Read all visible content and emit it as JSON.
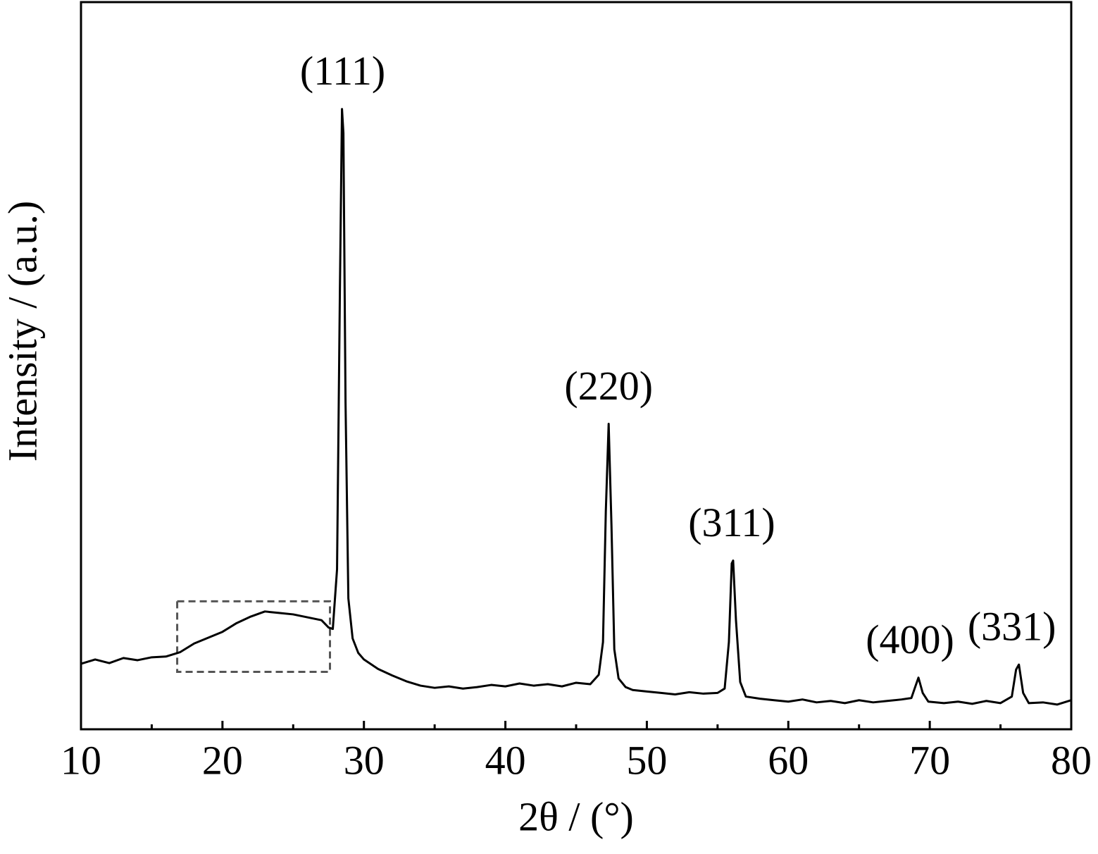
{
  "chart_data": {
    "type": "line",
    "xlabel": "2θ / (°)",
    "ylabel": "Intensity / (a.u.)",
    "x": [
      10,
      11,
      12,
      13,
      14,
      15,
      16,
      17,
      18,
      19,
      20,
      21,
      22,
      23,
      24,
      25,
      26,
      27,
      27.5,
      27.8,
      28.1,
      28.3,
      28.45,
      28.55,
      28.7,
      28.9,
      29.2,
      29.6,
      30,
      31,
      32,
      33,
      34,
      35,
      36,
      37,
      38,
      39,
      40,
      41,
      42,
      43,
      44,
      45,
      46,
      46.6,
      46.9,
      47.1,
      47.3,
      47.5,
      47.7,
      48,
      48.5,
      49,
      50,
      51,
      52,
      53,
      54,
      55,
      55.5,
      55.8,
      56,
      56.1,
      56.3,
      56.6,
      57,
      58,
      59,
      60,
      61,
      62,
      63,
      64,
      65,
      66,
      67,
      68,
      68.7,
      69.0,
      69.2,
      69.5,
      69.9,
      71,
      72,
      73,
      74,
      75,
      75.8,
      76.1,
      76.3,
      76.6,
      77,
      78,
      79,
      80
    ],
    "values": [
      9.0,
      9.6,
      9.1,
      9.8,
      9.5,
      9.9,
      10.0,
      10.6,
      11.8,
      12.6,
      13.4,
      14.6,
      15.5,
      16.2,
      16.0,
      15.8,
      15.4,
      15.0,
      14.0,
      13.8,
      22,
      60,
      85.3,
      82,
      45,
      18,
      12.5,
      10.5,
      9.6,
      8.3,
      7.4,
      6.6,
      6.0,
      5.7,
      5.9,
      5.6,
      5.8,
      6.1,
      5.9,
      6.3,
      6.0,
      6.2,
      5.9,
      6.4,
      6.2,
      7.5,
      12,
      30,
      42.0,
      28,
      11,
      7.0,
      5.8,
      5.4,
      5.2,
      5.0,
      4.8,
      5.1,
      4.9,
      5.0,
      5.6,
      12,
      22.8,
      23.2,
      15,
      6.5,
      4.5,
      4.2,
      4.0,
      3.8,
      4.1,
      3.7,
      3.9,
      3.6,
      4.0,
      3.7,
      3.9,
      4.1,
      4.3,
      6.0,
      7.1,
      5.0,
      3.8,
      3.6,
      3.8,
      3.5,
      3.9,
      3.6,
      4.5,
      8.2,
      8.9,
      5.0,
      3.6,
      3.7,
      3.4,
      4.0
    ],
    "color": "#000000",
    "xlim": [
      10,
      80
    ],
    "ylim": [
      0,
      100
    ],
    "xticks": [
      10,
      20,
      30,
      40,
      50,
      60,
      70,
      80
    ],
    "xminor_ticks": [
      15,
      25,
      35,
      45,
      55,
      65,
      75
    ],
    "annotations": [
      {
        "text": "(111)",
        "x": 28.5
      },
      {
        "text": "(220)",
        "x": 47.3
      },
      {
        "text": "(311)",
        "x": 56.0
      },
      {
        "text": "(400)",
        "x": 68.6
      },
      {
        "text": "(331)",
        "x": 75.8
      }
    ],
    "highlight_box": {
      "xlim": [
        16.8,
        27.6
      ],
      "ylim": [
        7.9,
        17.6
      ]
    }
  }
}
